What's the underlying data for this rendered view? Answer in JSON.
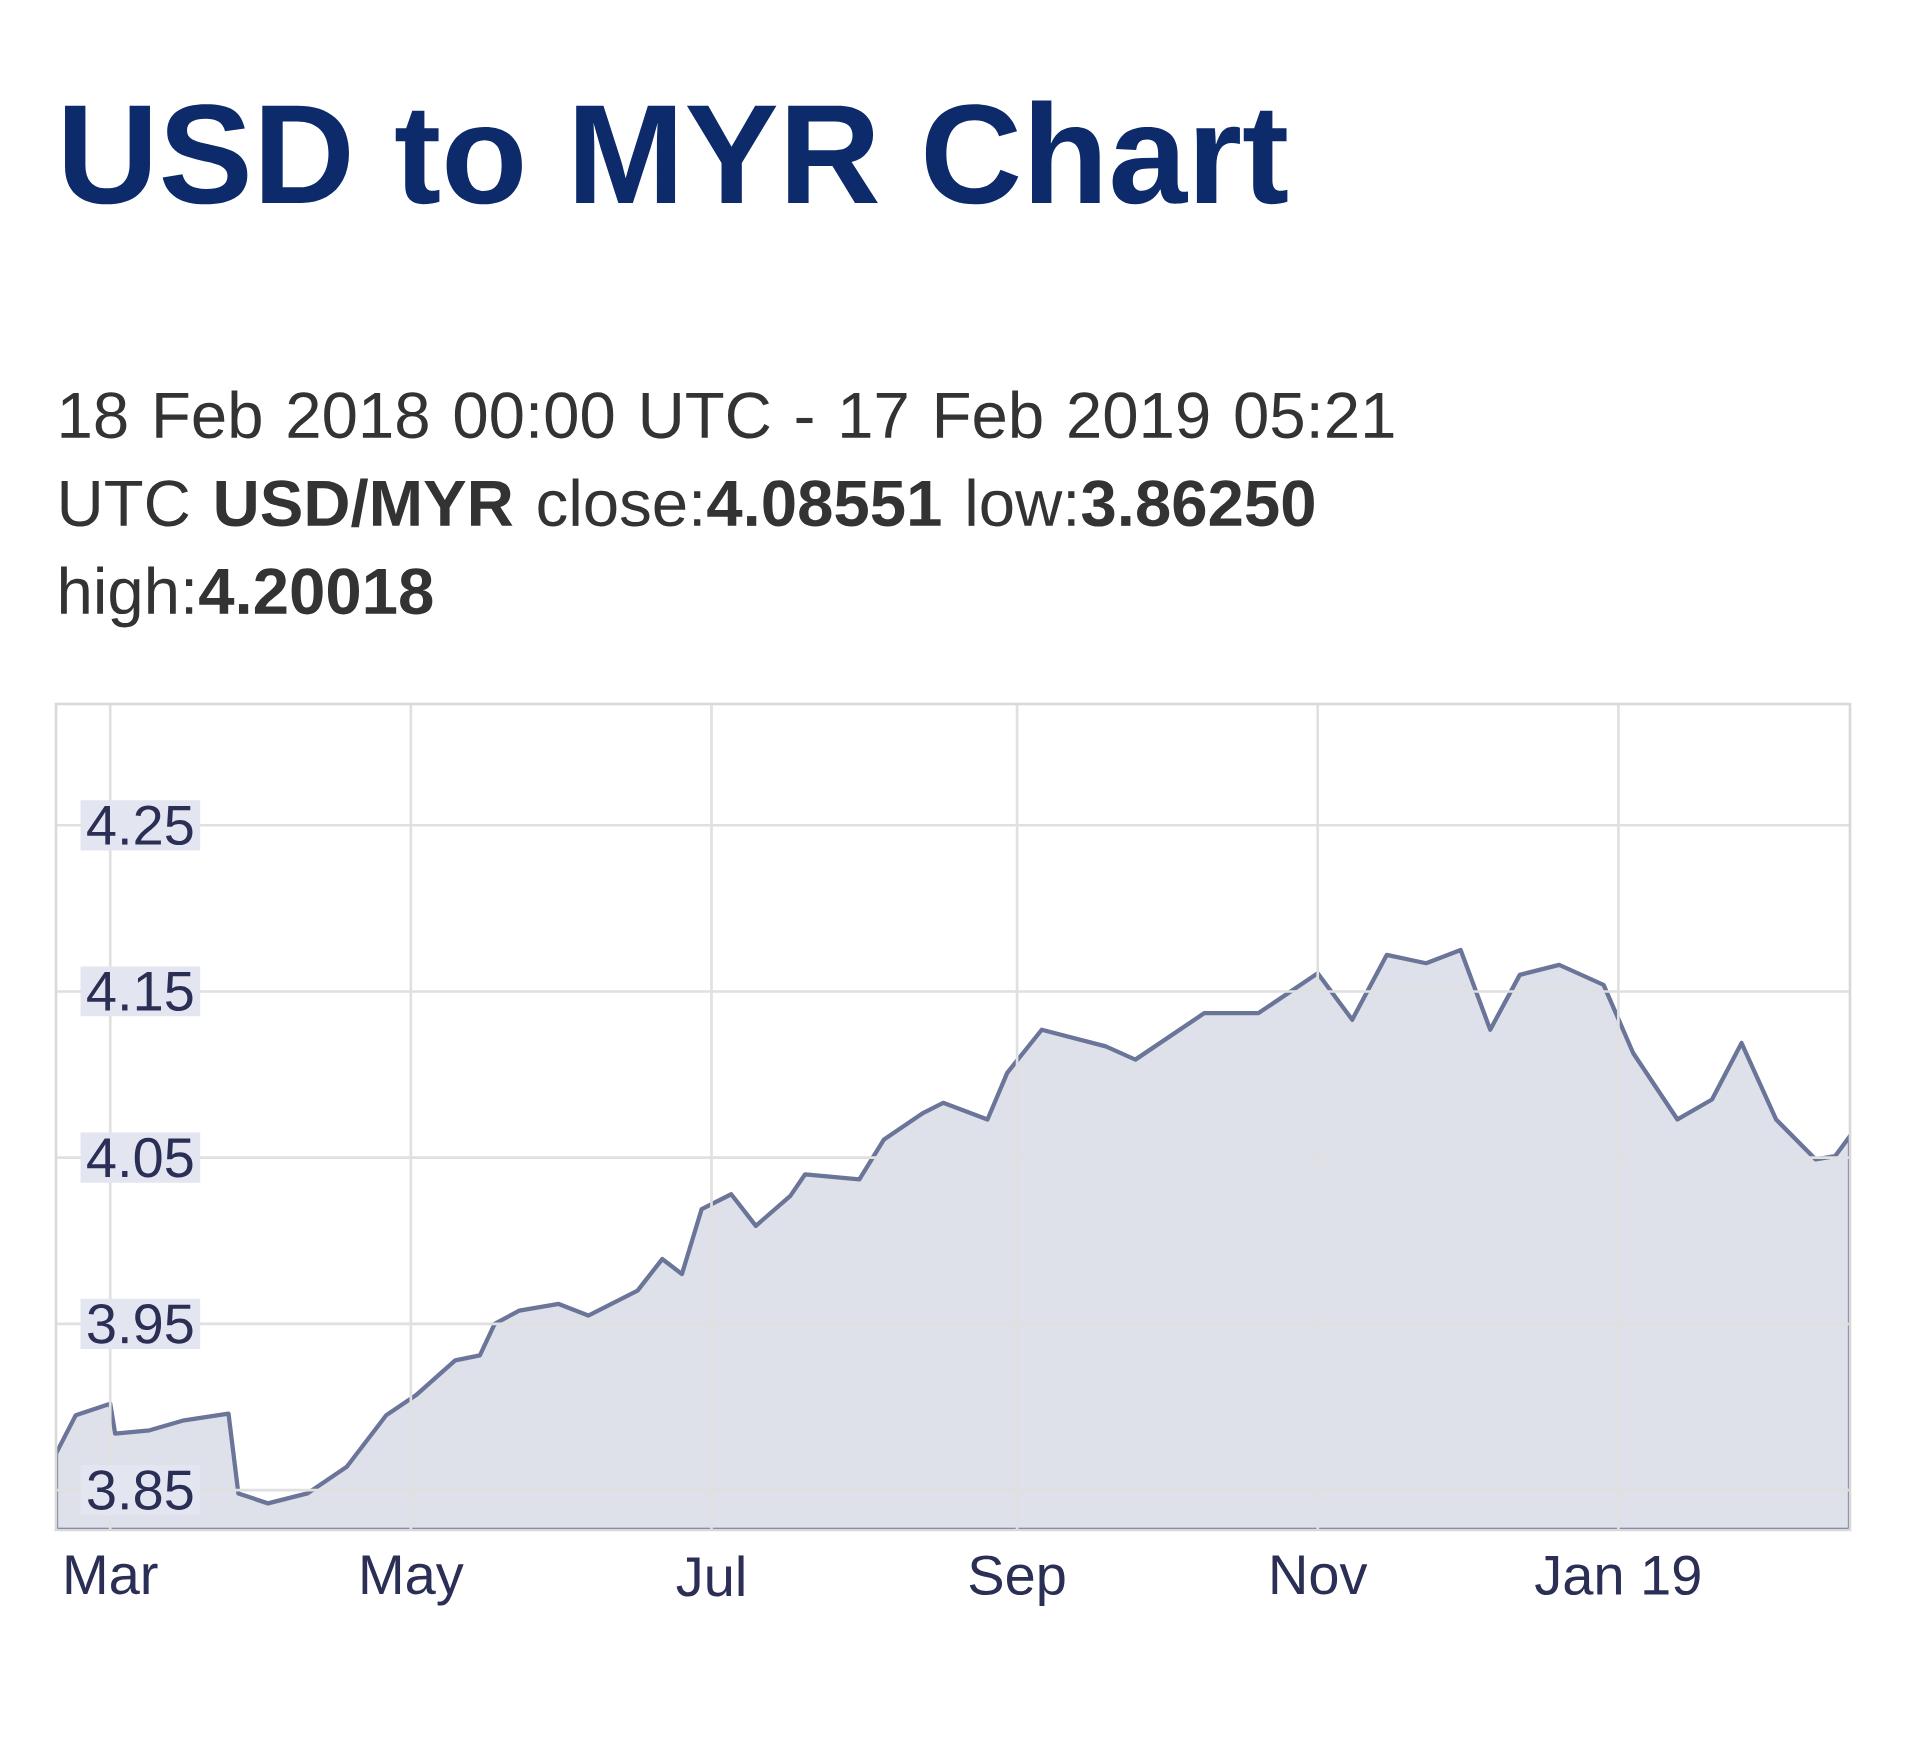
{
  "chart_data": {
    "type": "area",
    "title": "USD to MYR Chart",
    "subtitle": "18 Feb 2018 00:00 UTC - 17 Feb 2019 05:21 UTC **USD/MYR** close:**4.08551** low:**3.86250** high:**4.20018**",
    "x": [
      "2018-02-18",
      "2018-02-22",
      "2018-03-01",
      "2018-03-02",
      "2018-03-09",
      "2018-03-16",
      "2018-03-25",
      "2018-03-27",
      "2018-04-02",
      "2018-04-10",
      "2018-04-18",
      "2018-04-26",
      "2018-05-02",
      "2018-05-10",
      "2018-05-15",
      "2018-05-18",
      "2018-05-23",
      "2018-05-31",
      "2018-06-06",
      "2018-06-16",
      "2018-06-21",
      "2018-06-25",
      "2018-06-29",
      "2018-07-05",
      "2018-07-10",
      "2018-07-17",
      "2018-07-20",
      "2018-07-31",
      "2018-08-05",
      "2018-08-13",
      "2018-08-17",
      "2018-08-26",
      "2018-08-30",
      "2018-09-06",
      "2018-09-19",
      "2018-09-25",
      "2018-10-09",
      "2018-10-20",
      "2018-11-01",
      "2018-11-08",
      "2018-11-15",
      "2018-11-23",
      "2018-11-30",
      "2018-12-06",
      "2018-12-12",
      "2018-12-20",
      "2018-12-29",
      "2019-01-04",
      "2019-01-13",
      "2019-01-20",
      "2019-01-26",
      "2019-02-02",
      "2019-02-10",
      "2019-02-14",
      "2019-02-17"
    ],
    "series": [
      {
        "color": "#6b7599",
        "values": [
          3.872,
          3.895,
          3.902,
          3.884,
          3.886,
          3.892,
          3.896,
          3.848,
          3.842,
          3.848,
          3.864,
          3.895,
          3.907,
          3.928,
          3.931,
          3.95,
          3.958,
          3.962,
          3.955,
          3.97,
          3.989,
          3.98,
          4.019,
          4.028,
          4.009,
          4.027,
          4.04,
          4.037,
          4.061,
          4.077,
          4.083,
          4.073,
          4.101,
          4.127,
          4.117,
          4.109,
          4.137,
          4.137,
          4.161,
          4.133,
          4.172,
          4.167,
          4.175,
          4.127,
          4.16,
          4.166,
          4.154,
          4.113,
          4.073,
          4.085,
          4.119,
          4.073,
          4.049,
          4.051,
          4.063
        ]
      }
    ],
    "xlim": [
      "2018-02-18",
      "2019-02-17"
    ],
    "xticks": [
      {
        "value": "2018-03-01",
        "label": "Mar"
      },
      {
        "value": "2018-05-01",
        "label": "May"
      },
      {
        "value": "2018-07-01",
        "label": "Jul"
      },
      {
        "value": "2018-09-01",
        "label": "Sep"
      },
      {
        "value": "2018-11-01",
        "label": "Nov"
      },
      {
        "value": "2019-01-01",
        "label": "Jan 19"
      }
    ],
    "ylim": [
      3.826,
      4.323
    ],
    "yticks": [
      3.85,
      3.95,
      4.05,
      4.15,
      4.25
    ],
    "grid": true
  }
}
